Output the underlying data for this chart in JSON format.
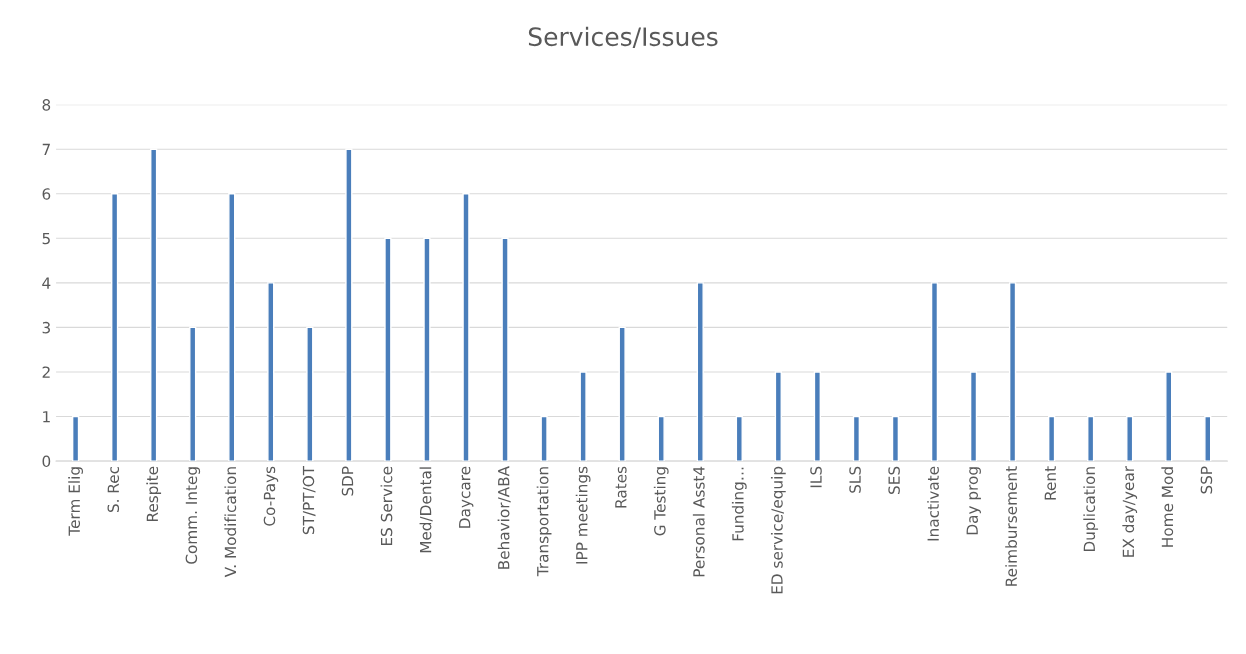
{
  "chart_data": {
    "type": "bar",
    "title": "Services/Issues",
    "categories": [
      "Term Elig",
      "S. Rec",
      "Respite",
      "Comm. Integ",
      "V. Modification",
      "Co-Pays",
      "ST/PT/OT",
      "SDP",
      "ES Service",
      "Med/Dental",
      "Daycare",
      "Behavior/ABA",
      "Transportation",
      "IPP meetings",
      "Rates",
      "G Testing",
      "Personal Asst4",
      "Funding…",
      "ED service/equip",
      "ILS",
      "SLS",
      "SES",
      "Inactivate",
      "Day prog",
      "Reimbursement",
      "Rent",
      "Duplication",
      "EX day/year",
      "Home Mod",
      "SSP"
    ],
    "values": [
      1,
      6,
      7,
      3,
      6,
      4,
      3,
      7,
      5,
      5,
      6,
      5,
      1,
      2,
      3,
      1,
      4,
      1,
      2,
      2,
      1,
      1,
      4,
      2,
      4,
      1,
      1,
      1,
      2,
      1
    ],
    "color": "#4a7ebb",
    "ylim": [
      0,
      8
    ],
    "yticks": [
      0,
      1,
      2,
      3,
      4,
      5,
      6,
      7,
      8
    ],
    "grid": "y",
    "legend": false
  }
}
